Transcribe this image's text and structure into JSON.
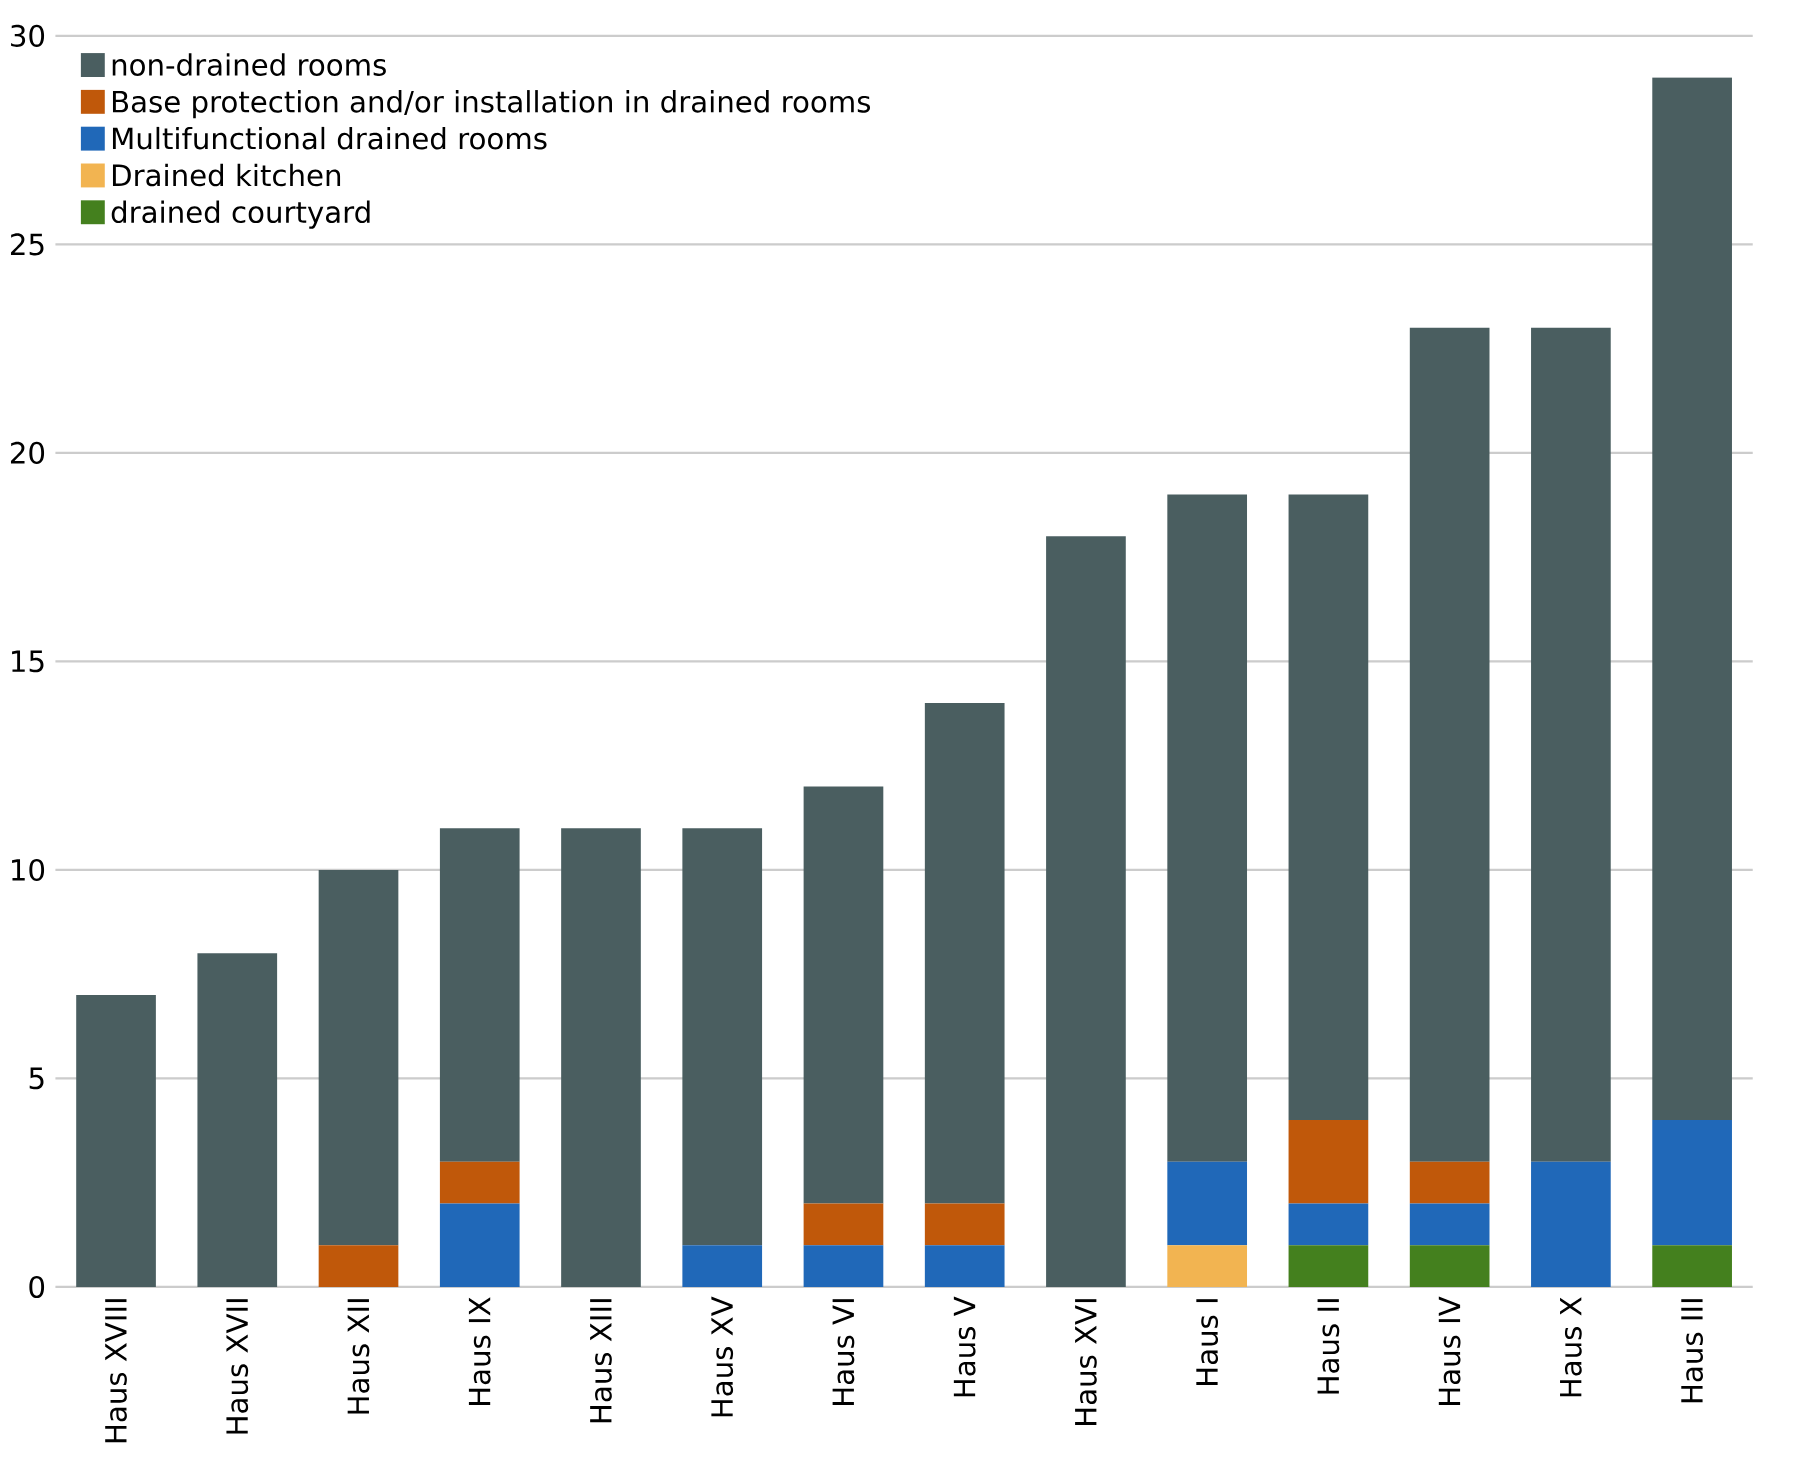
{
  "chart_data": {
    "type": "bar",
    "stacked": true,
    "categories": [
      "Haus XVIII",
      "Haus XVII",
      "Haus XII",
      "Haus IX",
      "Haus XIII",
      "Haus XV",
      "Haus VI",
      "Haus V",
      "Haus XVI",
      "Haus I",
      "Haus II",
      "Haus IV",
      "Haus X",
      "Haus III"
    ],
    "series": [
      {
        "name": "drained courtyard",
        "color": "#44801e",
        "values": [
          0,
          0,
          0,
          0,
          0,
          0,
          0,
          0,
          0,
          0,
          1,
          1,
          0,
          1
        ]
      },
      {
        "name": "Drained kitchen",
        "color": "#f2b451",
        "values": [
          0,
          0,
          0,
          0,
          0,
          0,
          0,
          0,
          0,
          1,
          0,
          0,
          0,
          0
        ]
      },
      {
        "name": "Multifunctional drained rooms",
        "color": "#2068b8",
        "values": [
          0,
          0,
          0,
          2,
          0,
          1,
          1,
          1,
          0,
          2,
          1,
          1,
          3,
          3
        ]
      },
      {
        "name": "Base protection and/or installation in drained rooms",
        "color": "#c0580a",
        "values": [
          0,
          0,
          1,
          1,
          0,
          0,
          1,
          1,
          0,
          0,
          2,
          1,
          0,
          0
        ]
      },
      {
        "name": "non-drained rooms",
        "color": "#4a5e60",
        "values": [
          7,
          8,
          9,
          8,
          11,
          10,
          10,
          12,
          18,
          16,
          15,
          20,
          20,
          25
        ]
      }
    ],
    "ylim": [
      0,
      30
    ],
    "yticks": [
      0,
      5,
      10,
      15,
      20,
      25,
      30
    ],
    "grid": "y",
    "legend": "top left"
  }
}
